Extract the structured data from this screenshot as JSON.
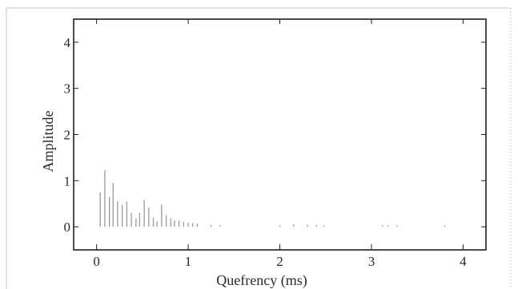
{
  "chart_data": {
    "type": "bar",
    "title": "",
    "xlabel": "Quefrency (ms)",
    "ylabel": "Amplitude",
    "xlim": [
      -0.25,
      4.25
    ],
    "ylim": [
      -0.5,
      4.5
    ],
    "xticks": [
      0,
      1,
      2,
      3,
      4
    ],
    "xtick_labels": [
      "0",
      "1",
      "2",
      "3",
      "4"
    ],
    "yticks": [
      0,
      1,
      2,
      3,
      4
    ],
    "ytick_labels": [
      "0",
      "1",
      "2",
      "3",
      "4"
    ],
    "grid": false,
    "legend": "none",
    "bar_color": "#9a9a9a",
    "x": [
      0.04,
      0.09,
      0.14,
      0.18,
      0.23,
      0.28,
      0.33,
      0.38,
      0.43,
      0.47,
      0.52,
      0.57,
      0.62,
      0.66,
      0.71,
      0.76,
      0.81,
      0.85,
      0.9,
      0.95,
      1.0,
      1.05,
      1.1,
      1.25,
      1.35,
      2.0,
      2.15,
      2.3,
      2.4,
      2.48,
      3.12,
      3.18,
      3.28,
      3.8
    ],
    "values": [
      0.75,
      1.22,
      0.65,
      0.95,
      0.55,
      0.48,
      0.55,
      0.3,
      0.18,
      0.3,
      0.58,
      0.42,
      0.2,
      0.12,
      0.48,
      0.25,
      0.18,
      0.14,
      0.13,
      0.1,
      0.09,
      0.08,
      0.07,
      0.04,
      0.03,
      0.03,
      0.05,
      0.04,
      0.04,
      0.03,
      0.03,
      0.03,
      0.03,
      0.03
    ]
  }
}
